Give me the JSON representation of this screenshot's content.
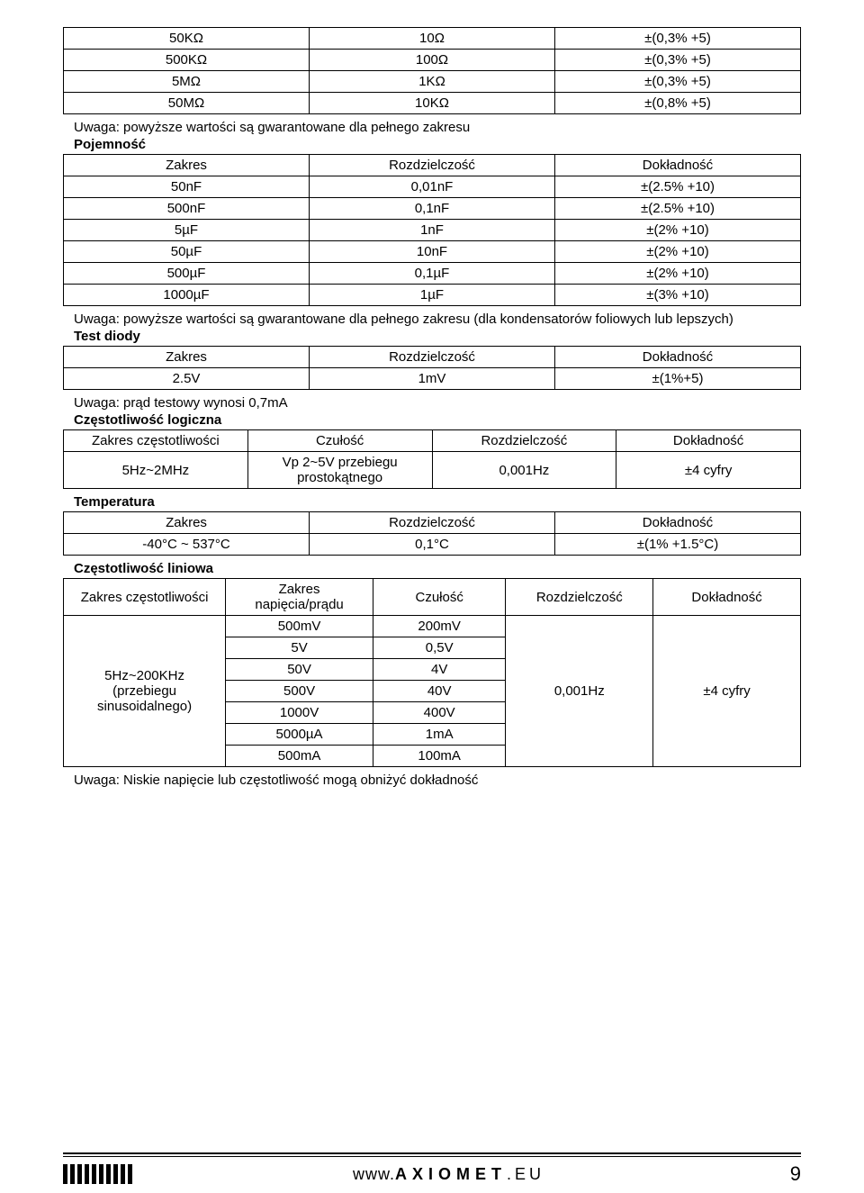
{
  "table1": {
    "rows": [
      [
        "50KΩ",
        "10Ω",
        "±(0,3% +5)"
      ],
      [
        "500KΩ",
        "100Ω",
        "±(0,3% +5)"
      ],
      [
        "5MΩ",
        "1KΩ",
        "±(0,3% +5)"
      ],
      [
        "50MΩ",
        "10KΩ",
        "±(0,8% +5)"
      ]
    ]
  },
  "note1": "Uwaga: powyższe wartości są gwarantowane dla pełnego zakresu",
  "section_capacitance": "Pojemność",
  "table2": {
    "header": [
      "Zakres",
      "Rozdzielczość",
      "Dokładność"
    ],
    "rows": [
      [
        "50nF",
        "0,01nF",
        "±(2.5% +10)"
      ],
      [
        "500nF",
        "0,1nF",
        "±(2.5% +10)"
      ],
      [
        "5µF",
        "1nF",
        "±(2% +10)"
      ],
      [
        "50µF",
        "10nF",
        "±(2% +10)"
      ],
      [
        "500µF",
        "0,1µF",
        "±(2% +10)"
      ],
      [
        "1000µF",
        "1µF",
        "±(3% +10)"
      ]
    ]
  },
  "note2": "Uwaga: powyższe wartości są gwarantowane dla pełnego zakresu (dla kondensatorów foliowych lub lepszych)",
  "section_diode": "Test diody",
  "table3": {
    "header": [
      "Zakres",
      "Rozdzielczość",
      "Dokładność"
    ],
    "rows": [
      [
        "2.5V",
        "1mV",
        "±(1%+5)"
      ]
    ]
  },
  "note3": "Uwaga: prąd testowy wynosi 0,7mA",
  "section_logic_freq": "Częstotliwość logiczna",
  "table4": {
    "header": [
      "Zakres częstotliwości",
      "Czułość",
      "Rozdzielczość",
      "Dokładność"
    ],
    "rows": [
      [
        "5Hz~2MHz",
        "Vp 2~5V przebiegu prostokątnego",
        "0,001Hz",
        "±4 cyfry"
      ]
    ]
  },
  "section_temp": "Temperatura",
  "table5": {
    "header": [
      "Zakres",
      "Rozdzielczość",
      "Dokładność"
    ],
    "rows": [
      [
        "-40°C ~ 537°C",
        "0,1°C",
        "±(1% +1.5°C)"
      ]
    ]
  },
  "section_linear_freq": "Częstotliwość liniowa",
  "table6": {
    "header": [
      "Zakres częstotliwości",
      "Zakres napięcia/prądu",
      "Czułość",
      "Rozdzielczość",
      "Dokładność"
    ],
    "merged_left": "5Hz~200KHz (przebiegu sinusoidalnego)",
    "rows": [
      [
        "500mV",
        "200mV"
      ],
      [
        "5V",
        "0,5V"
      ],
      [
        "50V",
        "4V"
      ],
      [
        "500V",
        "40V"
      ],
      [
        "1000V",
        "400V"
      ],
      [
        "5000µA",
        "1mA"
      ],
      [
        "500mA",
        "100mA"
      ]
    ],
    "merged_rozd": "0,001Hz",
    "merged_dokl": "±4 cyfry"
  },
  "note4": "Uwaga: Niskie napięcie lub częstotliwość mogą obniżyć dokładność",
  "footer": {
    "www": "www.",
    "brand": "AXIOMET",
    "tld": ".EU",
    "page": "9"
  }
}
